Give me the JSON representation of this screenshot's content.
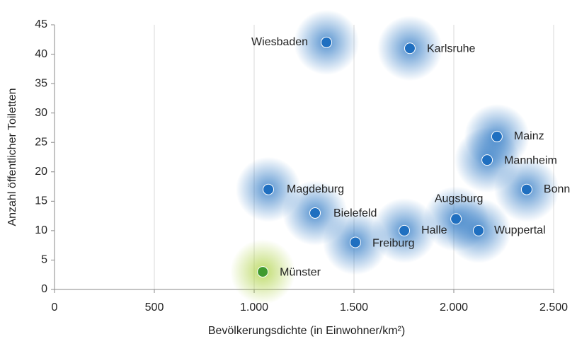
{
  "chart_data": {
    "type": "scatter",
    "xlabel": "Bevölkerungsdichte (in Einwohner/km²)",
    "ylabel": "Anzahl öffentlicher Toiletten",
    "labels": [
      "Wiesbaden",
      "Karlsruhe",
      "Mainz",
      "Mannheim",
      "Bonn",
      "Magdeburg",
      "Bielefeld",
      "Augsburg",
      "Halle",
      "Wuppertal",
      "Freiburg",
      "Münster"
    ],
    "x": [
      1362,
      1780,
      2216,
      2167,
      2365,
      1071,
      1305,
      2011,
      1752,
      2124,
      1507,
      1043
    ],
    "values": [
      42,
      41,
      26,
      22,
      17,
      17,
      13,
      12,
      10,
      10,
      8,
      3
    ],
    "colors": [
      "#1f6fc0",
      "#1f6fc0",
      "#1f6fc0",
      "#1f6fc0",
      "#1f6fc0",
      "#1f6fc0",
      "#1f6fc0",
      "#1f6fc0",
      "#1f6fc0",
      "#1f6fc0",
      "#1f6fc0",
      "#3f9a2e"
    ],
    "xlim": [
      0,
      2500
    ],
    "xticks": [
      0,
      500,
      {
        "value": 1000,
        "label": "1.000"
      },
      {
        "value": 1500,
        "label": "1.500"
      },
      {
        "value": 2000,
        "label": "2.000"
      },
      {
        "value": 2500,
        "label": "2.500"
      }
    ],
    "ylim": [
      0,
      45
    ],
    "yticks": [
      0,
      5,
      10,
      15,
      20,
      25,
      30,
      35,
      40,
      45
    ],
    "grid": true
  }
}
